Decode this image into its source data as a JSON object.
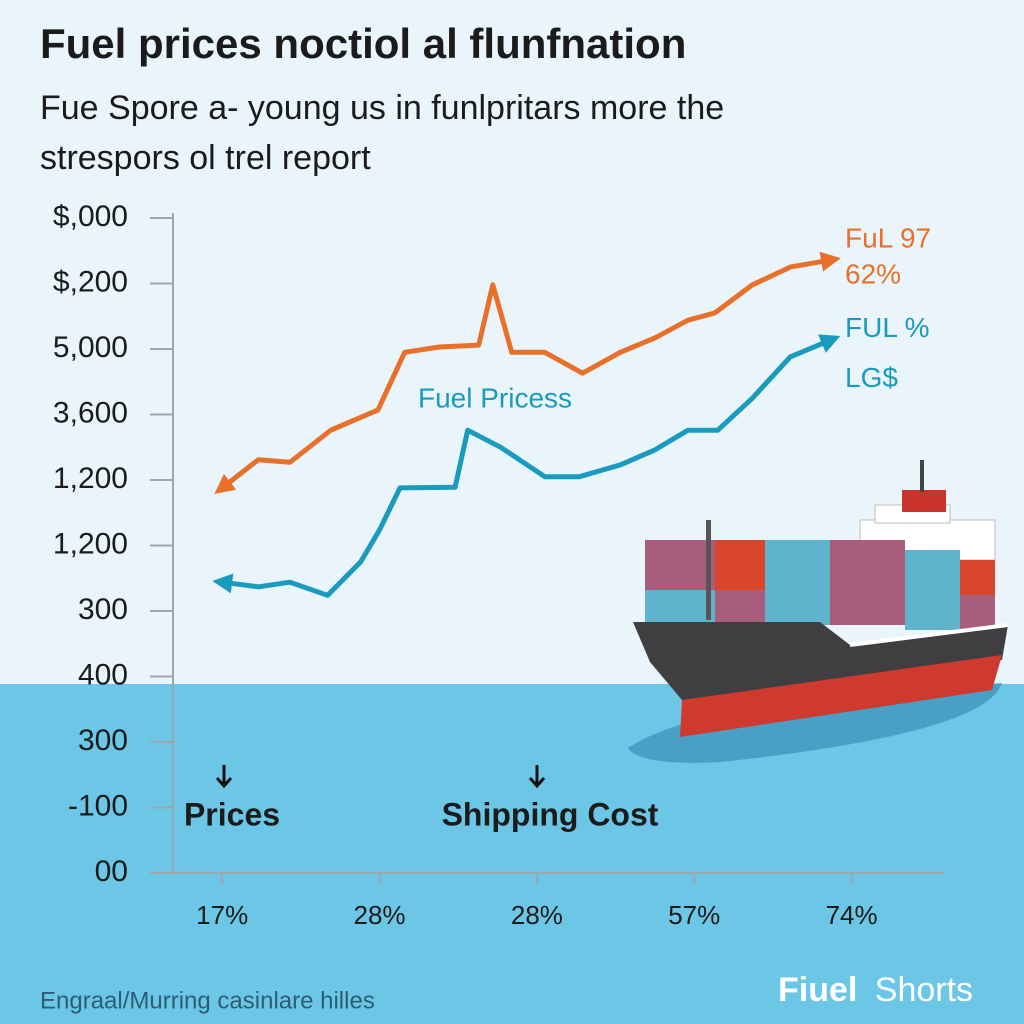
{
  "chart_data": {
    "type": "line",
    "title": "Fuel prices noctiol al flunfnation",
    "subtitle": [
      "Fue Spore a- young us in funlpritars more the",
      "strespors ol trel report"
    ],
    "annotation": "Fuel Pricess",
    "callouts": [
      "Prices",
      "Shipping Cost"
    ],
    "footer": "Engraal/Murring casinlare hilles",
    "brand": [
      "Fiuel",
      "Shorts"
    ],
    "xlim": [
      -0.3,
      4.6
    ],
    "xticks": [
      {
        "value": 0,
        "label": "17%"
      },
      {
        "value": 1,
        "label": "28%"
      },
      {
        "value": 2,
        "label": "28%"
      },
      {
        "value": 3,
        "label": "57%"
      },
      {
        "value": 4,
        "label": "74%"
      }
    ],
    "ylim": [
      0,
      10
    ],
    "yticks": [
      {
        "value": 10,
        "label": "$,000"
      },
      {
        "value": 9,
        "label": "$,200"
      },
      {
        "value": 8,
        "label": "5,000"
      },
      {
        "value": 7,
        "label": "3,600"
      },
      {
        "value": 6,
        "label": "1,200"
      },
      {
        "value": 5,
        "label": "1,200"
      },
      {
        "value": 4,
        "label": "300"
      },
      {
        "value": 3,
        "label": "400"
      },
      {
        "value": 2,
        "label": "300"
      },
      {
        "value": 1,
        "label": "-100"
      },
      {
        "value": 0,
        "label": "00"
      }
    ],
    "series": [
      {
        "name": "FuL 97",
        "note": "62%",
        "color": "#e8702a",
        "x": [
          0,
          0.23,
          0.43,
          0.69,
          0.99,
          1.16,
          1.38,
          1.63,
          1.72,
          1.84,
          2.05,
          2.29,
          2.53,
          2.75,
          2.96,
          3.13,
          3.37,
          3.61,
          3.87
        ],
        "values": [
          5.88,
          6.31,
          6.27,
          6.76,
          7.07,
          7.95,
          8.03,
          8.06,
          8.98,
          7.95,
          7.95,
          7.63,
          7.95,
          8.17,
          8.44,
          8.55,
          8.98,
          9.25,
          9.36
        ]
      },
      {
        "name": "FUL %",
        "note": "LG$",
        "color": "#1a9bbd",
        "x": [
          0,
          0.23,
          0.43,
          0.67,
          0.88,
          1.0,
          1.13,
          1.48,
          1.56,
          1.77,
          2.05,
          2.27,
          2.53,
          2.75,
          2.96,
          3.15,
          3.37,
          3.61,
          3.87
        ],
        "values": [
          4.44,
          4.37,
          4.44,
          4.24,
          4.75,
          5.24,
          5.88,
          5.89,
          6.76,
          6.5,
          6.05,
          6.05,
          6.23,
          6.46,
          6.76,
          6.76,
          7.25,
          7.88,
          8.14
        ]
      }
    ]
  }
}
